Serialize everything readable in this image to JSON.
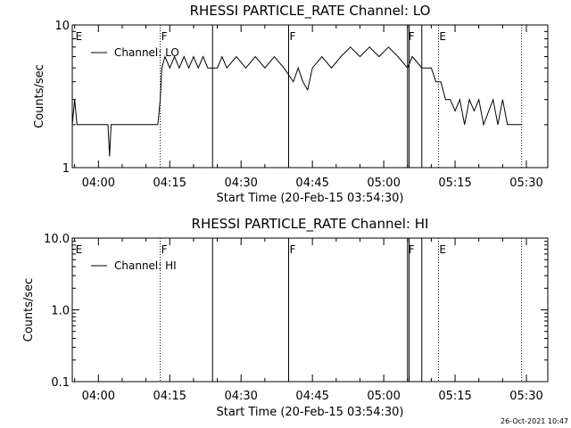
{
  "footer": {
    "timestamp": "26-Oct-2021 10:47"
  },
  "chart_data": [
    {
      "type": "line",
      "title": "RHESSI PARTICLE_RATE Channel: LO",
      "xlabel": "Start Time (20-Feb-15 03:54:30)",
      "ylabel": "Counts/sec",
      "yscale": "log",
      "ylim": [
        1,
        10
      ],
      "xlim": [
        "03:54:30",
        "05:34:30"
      ],
      "x_ticks": [
        "04:00",
        "04:15",
        "04:30",
        "04:45",
        "05:00",
        "05:15",
        "05:30"
      ],
      "y_ticks": [
        "1",
        "10"
      ],
      "grid": false,
      "legend": {
        "position": "top-left",
        "entries": [
          "Channel: LO"
        ]
      },
      "series": [
        {
          "name": "Channel: LO",
          "points": [
            [
              "03:54:30",
              2
            ],
            [
              "03:55:00",
              3
            ],
            [
              "03:55:30",
              2
            ],
            [
              "04:02:00",
              2
            ],
            [
              "04:02:20",
              1.2
            ],
            [
              "04:02:40",
              2
            ],
            [
              "04:12:30",
              2
            ],
            [
              "04:13:00",
              3
            ],
            [
              "04:13:20",
              5
            ],
            [
              "04:14:00",
              6
            ],
            [
              "04:15:00",
              5
            ],
            [
              "04:16:00",
              6
            ],
            [
              "04:17:00",
              5
            ],
            [
              "04:18:00",
              6
            ],
            [
              "04:19:00",
              5
            ],
            [
              "04:20:00",
              6
            ],
            [
              "04:21:00",
              5
            ],
            [
              "04:22:00",
              6
            ],
            [
              "04:23:00",
              5
            ],
            [
              "04:25:00",
              5
            ],
            [
              "04:26:00",
              6
            ],
            [
              "04:27:00",
              5
            ],
            [
              "04:29:00",
              6
            ],
            [
              "04:31:00",
              5
            ],
            [
              "04:33:00",
              6
            ],
            [
              "04:35:00",
              5
            ],
            [
              "04:37:00",
              6
            ],
            [
              "04:39:00",
              5
            ],
            [
              "04:41:00",
              4
            ],
            [
              "04:42:00",
              5
            ],
            [
              "04:43:00",
              4
            ],
            [
              "04:44:00",
              3.5
            ],
            [
              "04:45:00",
              5
            ],
            [
              "04:47:00",
              6
            ],
            [
              "04:49:00",
              5
            ],
            [
              "04:51:00",
              6
            ],
            [
              "04:53:00",
              7
            ],
            [
              "04:55:00",
              6
            ],
            [
              "04:57:00",
              7
            ],
            [
              "04:59:00",
              6
            ],
            [
              "05:01:00",
              7
            ],
            [
              "05:03:00",
              6
            ],
            [
              "05:05:00",
              5
            ],
            [
              "05:06:00",
              6
            ],
            [
              "05:08:00",
              5
            ],
            [
              "05:10:00",
              5
            ],
            [
              "05:11:00",
              4
            ],
            [
              "05:12:00",
              4
            ],
            [
              "05:13:00",
              3
            ],
            [
              "05:14:00",
              3
            ],
            [
              "05:15:00",
              2.5
            ],
            [
              "05:16:00",
              3
            ],
            [
              "05:17:00",
              2
            ],
            [
              "05:18:00",
              3
            ],
            [
              "05:19:00",
              2.5
            ],
            [
              "05:20:00",
              3
            ],
            [
              "05:21:00",
              2
            ],
            [
              "05:23:00",
              3
            ],
            [
              "05:24:00",
              2
            ],
            [
              "05:25:00",
              3
            ],
            [
              "05:26:00",
              2
            ],
            [
              "05:29:00",
              2
            ]
          ]
        }
      ],
      "annotations": [
        {
          "time": "03:55:00",
          "label": "E",
          "style": "none"
        },
        {
          "time": "04:13:00",
          "label": "F",
          "style": "dotted"
        },
        {
          "time": "04:24:00",
          "label": "",
          "style": "solid"
        },
        {
          "time": "04:40:00",
          "label": "F",
          "style": "solid"
        },
        {
          "time": "05:05:00",
          "label": "F",
          "style": "solid"
        },
        {
          "time": "05:05:20",
          "label": "",
          "style": "solid"
        },
        {
          "time": "05:08:00",
          "label": "",
          "style": "solid"
        },
        {
          "time": "05:11:30",
          "label": "E",
          "style": "dotted"
        },
        {
          "time": "05:29:00",
          "label": "",
          "style": "dotted"
        }
      ]
    },
    {
      "type": "line",
      "title": "RHESSI PARTICLE_RATE Channel: HI",
      "xlabel": "Start Time (20-Feb-15 03:54:30)",
      "ylabel": "Counts/sec",
      "yscale": "log",
      "ylim": [
        0.1,
        10
      ],
      "xlim": [
        "03:54:30",
        "05:34:30"
      ],
      "x_ticks": [
        "04:00",
        "04:15",
        "04:30",
        "04:45",
        "05:00",
        "05:15",
        "05:30"
      ],
      "y_ticks": [
        "0.1",
        "1.0",
        "10.0"
      ],
      "grid": false,
      "legend": {
        "position": "top-left",
        "entries": [
          "Channel: HI"
        ]
      },
      "series": [
        {
          "name": "Channel: HI",
          "points": []
        }
      ],
      "annotations": [
        {
          "time": "03:55:00",
          "label": "E",
          "style": "none"
        },
        {
          "time": "04:13:00",
          "label": "F",
          "style": "dotted"
        },
        {
          "time": "04:24:00",
          "label": "",
          "style": "solid"
        },
        {
          "time": "04:40:00",
          "label": "F",
          "style": "solid"
        },
        {
          "time": "05:05:00",
          "label": "F",
          "style": "solid"
        },
        {
          "time": "05:05:20",
          "label": "",
          "style": "solid"
        },
        {
          "time": "05:08:00",
          "label": "",
          "style": "solid"
        },
        {
          "time": "05:11:30",
          "label": "E",
          "style": "dotted"
        },
        {
          "time": "05:29:00",
          "label": "",
          "style": "dotted"
        }
      ]
    }
  ]
}
